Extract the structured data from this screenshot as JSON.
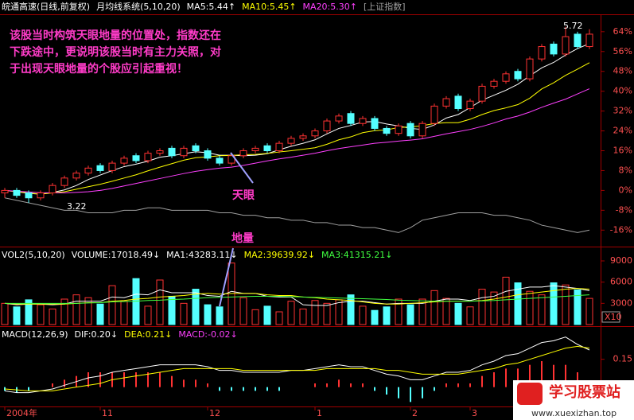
{
  "chart_data": [
    {
      "type": "candlestick",
      "title": "皖通高速(日线,前复权)",
      "subtitle": "月均线系统(5,10,20)",
      "categories": [
        "2004年",
        null,
        null,
        null,
        null,
        null,
        null,
        null,
        "11",
        null,
        null,
        null,
        null,
        null,
        null,
        null,
        null,
        "12",
        null,
        null,
        null,
        null,
        null,
        null,
        null,
        null,
        "1",
        null,
        null,
        null,
        null,
        null,
        null,
        null,
        "2",
        null,
        null,
        null,
        null,
        "3",
        null,
        null,
        null,
        null,
        null,
        null,
        null,
        null,
        null,
        null
      ],
      "open": [
        -1,
        0,
        -1,
        -3,
        -1,
        2,
        5,
        7,
        10,
        8,
        11,
        14,
        12,
        15,
        17,
        14,
        18,
        16,
        13,
        11,
        14,
        16,
        18,
        16,
        19,
        21,
        22,
        24,
        28,
        31,
        27,
        29,
        25,
        23,
        27,
        22,
        27,
        34,
        38,
        33,
        36,
        42,
        44,
        48,
        45,
        53,
        59,
        55,
        63,
        58
      ],
      "high": [
        1,
        1,
        0,
        0,
        3,
        6,
        8,
        10,
        11,
        12,
        14,
        15,
        16,
        17,
        18,
        18,
        19,
        17,
        14,
        15,
        17,
        18,
        19,
        20,
        22,
        23,
        25,
        29,
        31,
        32,
        30,
        30,
        26,
        27,
        28,
        28,
        35,
        38,
        39,
        37,
        43,
        45,
        48,
        49,
        54,
        59,
        60,
        66,
        64,
        65
      ],
      "low": [
        -3,
        -3,
        -5,
        -4,
        -2,
        1,
        4,
        6,
        7,
        7,
        10,
        11,
        11,
        14,
        13,
        13,
        15,
        12,
        10,
        10,
        13,
        15,
        15,
        15,
        18,
        20,
        21,
        23,
        27,
        26,
        26,
        24,
        22,
        22,
        21,
        21,
        26,
        33,
        32,
        32,
        35,
        41,
        43,
        44,
        44,
        52,
        54,
        54,
        57,
        57
      ],
      "close": [
        0,
        -2,
        -3,
        -1,
        2,
        5,
        7,
        9,
        8,
        11,
        13,
        12,
        15,
        16,
        14,
        17,
        16,
        13,
        11,
        14,
        16,
        17,
        16,
        19,
        21,
        22,
        24,
        28,
        30,
        27,
        29,
        25,
        23,
        26,
        22,
        27,
        34,
        37,
        33,
        36,
        42,
        44,
        47,
        45,
        53,
        58,
        55,
        62,
        58,
        63
      ],
      "up_color": "#ff3232",
      "down_color": "#54ffff",
      "series": [
        {
          "name": "MA5:5.44↑",
          "color": "#ffffff",
          "values": [
            0,
            -0.5,
            -1.2,
            -1.5,
            -0.8,
            0.2,
            2,
            4.4,
            6.2,
            8,
            9.6,
            10.6,
            11.8,
            13.4,
            14,
            14.8,
            15.6,
            15.2,
            14.2,
            14.2,
            14,
            14.2,
            14.8,
            16.4,
            17.8,
            19,
            20.4,
            22.8,
            25,
            26.2,
            27.6,
            27.8,
            26.8,
            26,
            25,
            24.6,
            26.4,
            29.2,
            30.6,
            33.4,
            36.4,
            38.4,
            40.4,
            42.8,
            46.2,
            49.4,
            51.6,
            54.6,
            57.2,
            59.2
          ]
        },
        {
          "name": "MA10:5.45↑",
          "color": "#ffff00",
          "values": [
            0,
            -0.5,
            -1,
            -1.5,
            -1,
            -0.5,
            0.5,
            1.5,
            2.5,
            3.7,
            5,
            6.3,
            7.9,
            9.4,
            10.8,
            12.2,
            13.2,
            13.5,
            14,
            14.1,
            14.4,
            14.5,
            14.9,
            15.5,
            16,
            16.6,
            17.2,
            18.6,
            20.4,
            21.6,
            23.3,
            24.1,
            24.4,
            25.4,
            25.6,
            26.1,
            27,
            27.3,
            27.3,
            28.7,
            30.6,
            32.2,
            33.3,
            34.6,
            37.2,
            40.9,
            43.4,
            46.4,
            48.9,
            51.5
          ]
        },
        {
          "name": "MA20:5.30↑",
          "color": "#ff40ff",
          "values": [
            0,
            -0.3,
            -0.6,
            -0.9,
            -1,
            -1,
            -0.8,
            -0.5,
            0,
            0.8,
            1.8,
            2.8,
            3.8,
            4.8,
            5.8,
            6.8,
            7.7,
            8.4,
            9,
            9.4,
            10.1,
            11,
            11.9,
            12.7,
            13.4,
            14.2,
            15,
            16,
            16.9,
            17.6,
            18.3,
            19,
            19.4,
            19.9,
            20.3,
            20.8,
            21.8,
            22.8,
            23.7,
            24.6,
            25.8,
            27.2,
            28.8,
            30,
            31.6,
            33.5,
            35.2,
            36.8,
            38.9,
            41
          ]
        },
        {
          "name": "[上证指数]",
          "color": "#a0a0a0",
          "values": [
            -3,
            -4,
            -5,
            -6,
            -7,
            -8,
            -8,
            -9,
            -9,
            -9,
            -8,
            -8,
            -7,
            -7,
            -8,
            -8,
            -8,
            -8,
            -9,
            -9,
            -10,
            -10,
            -11,
            -11,
            -12,
            -12,
            -13,
            -13,
            -14,
            -14,
            -15,
            -15,
            -16,
            -17,
            -15,
            -12,
            -11,
            -10,
            -9,
            -9,
            -9,
            -10,
            -10,
            -11,
            -12,
            -14,
            -15,
            -16,
            -17,
            -16
          ]
        }
      ],
      "ylim": [
        -22,
        71
      ],
      "yticks": [
        {
          "value": 64,
          "label": "64%"
        },
        {
          "value": 56,
          "label": "56%"
        },
        {
          "value": 48,
          "label": "48%"
        },
        {
          "value": 40,
          "label": "40%"
        },
        {
          "value": 32,
          "label": "32%"
        },
        {
          "value": 24,
          "label": "24%"
        },
        {
          "value": 16,
          "label": "16%"
        },
        {
          "value": 8,
          "label": "8%"
        },
        {
          "value": 0,
          "label": "0%"
        },
        {
          "value": -8,
          "label": "-8%"
        },
        {
          "value": -16,
          "label": "-16%"
        }
      ],
      "high_label": "5.72",
      "low_label": "3.22",
      "note": [
        "该股当时构筑天眼地量的位置处，指数还在",
        "下跌途中，更说明该股当时有主力关照，对",
        "于出现天眼地量的个股应引起重视！"
      ],
      "callouts": [
        "天眼",
        "地量"
      ]
    },
    {
      "type": "bar",
      "title": "VOL2(5,10,20)",
      "subtitle": "VOLUME:17018.49↓",
      "values": [
        3000,
        2500,
        3500,
        2800,
        2200,
        3600,
        4200,
        3800,
        2900,
        5500,
        3300,
        6500,
        2600,
        6300,
        4000,
        3000,
        5000,
        2800,
        2500,
        8700,
        3800,
        2100,
        2600,
        1800,
        3300,
        2200,
        3400,
        3000,
        3500,
        4200,
        2600,
        2000,
        2500,
        3600,
        2800,
        3600,
        4800,
        3700,
        3000,
        2500,
        5000,
        4600,
        6700,
        5900,
        4700,
        4200,
        5900,
        5600,
        4900,
        3700
      ],
      "series": [
        {
          "name": "MA1:43283.11↓",
          "color": "#ffffff",
          "values": [
            3000,
            2800,
            2900,
            2900,
            2800,
            2900,
            3300,
            3300,
            3300,
            3900,
            3800,
            4300,
            4200,
            4900,
            4500,
            4500,
            4500,
            4100,
            4000,
            4700,
            4400,
            4400,
            4000,
            3900,
            3900,
            2800,
            2700,
            2700,
            3100,
            3300,
            3300,
            3100,
            2900,
            3000,
            3000,
            3000,
            3300,
            3600,
            3600,
            3400,
            3800,
            4000,
            4700,
            5000,
            5300,
            5300,
            5500,
            5300,
            5100,
            4800
          ]
        },
        {
          "name": "MA2:39639.92↓",
          "color": "#ffff00",
          "values": [
            3000,
            2900,
            2900,
            2900,
            2900,
            2900,
            3000,
            3100,
            3100,
            3300,
            3400,
            3600,
            3700,
            3900,
            4000,
            4100,
            4300,
            4400,
            4300,
            4400,
            4400,
            4400,
            4200,
            4100,
            4100,
            3900,
            3800,
            3600,
            3500,
            3400,
            3200,
            3000,
            2900,
            2900,
            3000,
            3100,
            3200,
            3300,
            3300,
            3300,
            3400,
            3600,
            3900,
            4200,
            4400,
            4600,
            4800,
            5000,
            5100,
            5000
          ]
        },
        {
          "name": "MA3:41315.21↓",
          "color": "#40ff40",
          "values": [
            3000,
            3000,
            3000,
            3000,
            3000,
            3000,
            3000,
            3050,
            3100,
            3200,
            3250,
            3300,
            3400,
            3450,
            3550,
            3600,
            3700,
            3800,
            3850,
            3900,
            3950,
            4000,
            4000,
            4000,
            3950,
            3900,
            3850,
            3800,
            3750,
            3700,
            3650,
            3600,
            3550,
            3450,
            3400,
            3350,
            3300,
            3300,
            3300,
            3300,
            3350,
            3400,
            3500,
            3600,
            3700,
            3800,
            3900,
            4000,
            4100,
            4200
          ]
        }
      ],
      "ylim": [
        0,
        10800
      ],
      "yticks": [
        3000,
        6000,
        9000
      ],
      "badge": "X10"
    },
    {
      "type": "macd",
      "title": "MACD(12,26,9)",
      "series": [
        {
          "name": "DIF:0.20↓",
          "color": "#ffffff",
          "values": [
            -0.02,
            -0.03,
            -0.03,
            -0.02,
            -0.01,
            0.01,
            0.03,
            0.05,
            0.06,
            0.08,
            0.09,
            0.1,
            0.11,
            0.12,
            0.12,
            0.12,
            0.12,
            0.11,
            0.09,
            0.09,
            0.08,
            0.08,
            0.08,
            0.08,
            0.09,
            0.09,
            0.1,
            0.11,
            0.12,
            0.11,
            0.11,
            0.09,
            0.07,
            0.06,
            0.04,
            0.04,
            0.06,
            0.08,
            0.08,
            0.09,
            0.12,
            0.14,
            0.17,
            0.18,
            0.21,
            0.24,
            0.25,
            0.27,
            0.23,
            0.2
          ]
        },
        {
          "name": "DEA:0.21↓",
          "color": "#ffff00",
          "values": [
            -0.01,
            -0.015,
            -0.02,
            -0.02,
            -0.02,
            -0.01,
            0,
            0.01,
            0.02,
            0.04,
            0.05,
            0.06,
            0.07,
            0.08,
            0.09,
            0.1,
            0.1,
            0.1,
            0.1,
            0.1,
            0.09,
            0.09,
            0.09,
            0.09,
            0.09,
            0.09,
            0.09,
            0.1,
            0.1,
            0.1,
            0.1,
            0.1,
            0.09,
            0.09,
            0.08,
            0.07,
            0.07,
            0.07,
            0.07,
            0.08,
            0.09,
            0.1,
            0.12,
            0.13,
            0.15,
            0.17,
            0.19,
            0.21,
            0.22,
            0.21
          ]
        }
      ],
      "histogram": {
        "name": "MACD:-0.02↓",
        "color": "#ff40ff",
        "values": [
          -0.02,
          -0.03,
          -0.02,
          0,
          0.02,
          0.04,
          0.06,
          0.08,
          0.08,
          0.08,
          0.08,
          0.08,
          0.08,
          0.08,
          0.06,
          0.04,
          0.04,
          0.02,
          -0.02,
          -0.02,
          -0.02,
          -0.02,
          -0.02,
          -0.02,
          0,
          0,
          0.02,
          0.02,
          0.04,
          0.02,
          0.02,
          -0.02,
          -0.04,
          -0.06,
          -0.08,
          -0.06,
          -0.02,
          0.02,
          0.02,
          0.02,
          0.06,
          0.08,
          0.1,
          0.1,
          0.12,
          0.14,
          0.12,
          0.12,
          0.08,
          -0.02
        ]
      },
      "ylim": [
        -0.1,
        0.32
      ],
      "yticks": [
        0.15
      ]
    }
  ],
  "watermark": {
    "title": "学习股票站",
    "url": "www.xuexizhan.top"
  }
}
